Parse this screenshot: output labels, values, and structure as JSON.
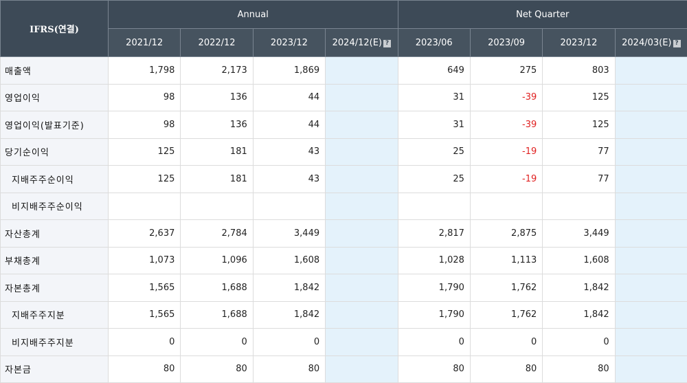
{
  "header": {
    "corner_label": "IFRS(연결)",
    "annual_label": "Annual",
    "quarter_label": "Net Quarter",
    "annual_periods": [
      "2021/12",
      "2022/12",
      "2023/12",
      "2024/12(E)"
    ],
    "quarter_periods": [
      "2023/06",
      "2023/09",
      "2023/12",
      "2024/03(E)"
    ],
    "help_icon_glyph": "?"
  },
  "rows": [
    {
      "label": "매출액",
      "sub": false,
      "annual": [
        "1,798",
        "2,173",
        "1,869",
        ""
      ],
      "quarter": [
        "649",
        "275",
        "803",
        ""
      ]
    },
    {
      "label": "영업이익",
      "sub": false,
      "annual": [
        "98",
        "136",
        "44",
        ""
      ],
      "quarter": [
        "31",
        "-39",
        "125",
        ""
      ]
    },
    {
      "label": "영업이익(발표기준)",
      "sub": false,
      "annual": [
        "98",
        "136",
        "44",
        ""
      ],
      "quarter": [
        "31",
        "-39",
        "125",
        ""
      ]
    },
    {
      "label": "당기순이익",
      "sub": false,
      "annual": [
        "125",
        "181",
        "43",
        ""
      ],
      "quarter": [
        "25",
        "-19",
        "77",
        ""
      ]
    },
    {
      "label": "지배주주순이익",
      "sub": true,
      "annual": [
        "125",
        "181",
        "43",
        ""
      ],
      "quarter": [
        "25",
        "-19",
        "77",
        ""
      ]
    },
    {
      "label": "비지배주주순이익",
      "sub": true,
      "annual": [
        "",
        "",
        "",
        ""
      ],
      "quarter": [
        "",
        "",
        "",
        ""
      ]
    },
    {
      "label": "자산총계",
      "sub": false,
      "annual": [
        "2,637",
        "2,784",
        "3,449",
        ""
      ],
      "quarter": [
        "2,817",
        "2,875",
        "3,449",
        ""
      ]
    },
    {
      "label": "부채총계",
      "sub": false,
      "annual": [
        "1,073",
        "1,096",
        "1,608",
        ""
      ],
      "quarter": [
        "1,028",
        "1,113",
        "1,608",
        ""
      ]
    },
    {
      "label": "자본총계",
      "sub": false,
      "annual": [
        "1,565",
        "1,688",
        "1,842",
        ""
      ],
      "quarter": [
        "1,790",
        "1,762",
        "1,842",
        ""
      ]
    },
    {
      "label": "지배주주지분",
      "sub": true,
      "annual": [
        "1,565",
        "1,688",
        "1,842",
        ""
      ],
      "quarter": [
        "1,790",
        "1,762",
        "1,842",
        ""
      ]
    },
    {
      "label": "비지배주주지분",
      "sub": true,
      "annual": [
        "0",
        "0",
        "0",
        ""
      ],
      "quarter": [
        "0",
        "0",
        "0",
        ""
      ]
    },
    {
      "label": "자본금",
      "sub": false,
      "annual": [
        "80",
        "80",
        "80",
        ""
      ],
      "quarter": [
        "80",
        "80",
        "80",
        ""
      ]
    }
  ],
  "colors": {
    "header_bg": "#3d4a57",
    "estimate_bg": "#e4f2fb",
    "label_bg": "#f3f5f9",
    "negative": "#e02020"
  }
}
